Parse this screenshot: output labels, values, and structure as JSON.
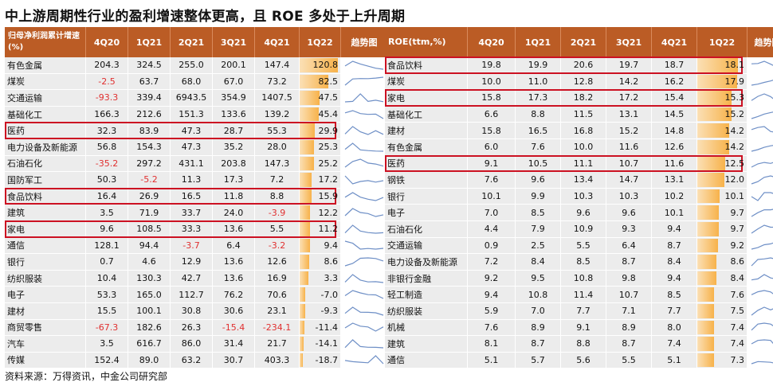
{
  "title": "中上游周期性行业的盈利增速整体更高，且 ROE 多处于上升周期",
  "source": "资料来源：万得资讯，中金公司研究部",
  "colors": {
    "header": "#bb5c25",
    "highlight": "#cc1122",
    "negative": "#e03030",
    "bar": "#f7b24a",
    "spark": "#6e8fc6"
  },
  "chart_data": [
    {
      "type": "table",
      "header_label": "归母净利润累计增速(%)",
      "columns": [
        "4Q20",
        "1Q21",
        "2Q21",
        "3Q21",
        "4Q21",
        "1Q22"
      ],
      "trend_label": "趋势图",
      "highlighted": [
        "医药",
        "食品饮料",
        "家电"
      ],
      "rows": [
        {
          "name": "有色金属",
          "values": [
            204.3,
            324.5,
            255.0,
            200.1,
            147.4,
            120.8
          ]
        },
        {
          "name": "煤炭",
          "values": [
            -2.5,
            63.7,
            68.0,
            67.0,
            73.2,
            82.5
          ]
        },
        {
          "name": "交通运输",
          "values": [
            -93.3,
            339.4,
            6943.5,
            354.9,
            1407.5,
            47.5
          ]
        },
        {
          "name": "基础化工",
          "values": [
            166.3,
            212.6,
            151.3,
            133.6,
            139.2,
            45.4
          ]
        },
        {
          "name": "医药",
          "values": [
            32.3,
            83.9,
            47.3,
            28.7,
            55.3,
            29.9
          ]
        },
        {
          "name": "电力设备及新能源",
          "values": [
            56.8,
            154.3,
            47.3,
            35.2,
            28.0,
            25.3
          ]
        },
        {
          "name": "石油石化",
          "values": [
            -35.2,
            297.2,
            431.1,
            203.8,
            147.3,
            25.2
          ]
        },
        {
          "name": "国防军工",
          "values": [
            50.3,
            -5.2,
            11.3,
            17.3,
            7.2,
            17.2
          ]
        },
        {
          "name": "食品饮料",
          "values": [
            16.4,
            26.9,
            16.5,
            11.8,
            8.8,
            15.9
          ]
        },
        {
          "name": "建筑",
          "values": [
            3.5,
            71.9,
            33.7,
            24.0,
            -3.9,
            12.2
          ]
        },
        {
          "name": "家电",
          "values": [
            9.6,
            108.5,
            33.3,
            13.6,
            5.5,
            11.2
          ]
        },
        {
          "name": "通信",
          "values": [
            128.1,
            94.4,
            -3.7,
            6.4,
            -3.2,
            9.4
          ]
        },
        {
          "name": "银行",
          "values": [
            0.7,
            4.6,
            12.9,
            13.6,
            12.6,
            8.6
          ]
        },
        {
          "name": "纺织服装",
          "values": [
            10.4,
            130.3,
            42.7,
            13.6,
            16.9,
            3.3
          ]
        },
        {
          "name": "电子",
          "values": [
            53.3,
            165.0,
            112.7,
            76.2,
            70.6,
            -7.0
          ]
        },
        {
          "name": "建材",
          "values": [
            15.5,
            100.1,
            30.8,
            30.6,
            23.1,
            -9.3
          ]
        },
        {
          "name": "商贸零售",
          "values": [
            -67.3,
            182.6,
            26.3,
            -15.4,
            -234.1,
            -11.4
          ]
        },
        {
          "name": "汽车",
          "values": [
            3.5,
            616.7,
            86.0,
            31.4,
            21.7,
            -14.1
          ]
        },
        {
          "name": "传媒",
          "values": [
            152.4,
            89.0,
            63.2,
            30.7,
            403.3,
            -18.7
          ]
        }
      ]
    },
    {
      "type": "table",
      "header_label": "ROE(ttm,%)",
      "columns": [
        "4Q20",
        "1Q21",
        "2Q21",
        "3Q21",
        "4Q21",
        "1Q22"
      ],
      "trend_label": "趋势图",
      "highlighted": [
        "食品饮料",
        "家电",
        "医药"
      ],
      "rows": [
        {
          "name": "食品饮料",
          "values": [
            19.8,
            19.9,
            20.6,
            19.7,
            18.7,
            18.1
          ]
        },
        {
          "name": "煤炭",
          "values": [
            10.0,
            11.0,
            12.8,
            14.2,
            16.2,
            17.9
          ]
        },
        {
          "name": "家电",
          "values": [
            15.8,
            17.3,
            18.2,
            17.2,
            15.4,
            15.3
          ]
        },
        {
          "name": "基础化工",
          "values": [
            6.6,
            8.8,
            11.5,
            13.1,
            14.5,
            15.2
          ]
        },
        {
          "name": "建材",
          "values": [
            15.8,
            16.5,
            16.8,
            15.2,
            14.8,
            14.2
          ]
        },
        {
          "name": "有色金属",
          "values": [
            6.0,
            7.6,
            10.0,
            11.6,
            12.6,
            14.2
          ]
        },
        {
          "name": "医药",
          "values": [
            9.1,
            10.5,
            11.1,
            10.7,
            11.6,
            12.5
          ]
        },
        {
          "name": "钢铁",
          "values": [
            7.6,
            9.6,
            13.4,
            14.7,
            13.1,
            12.0
          ]
        },
        {
          "name": "银行",
          "values": [
            10.1,
            9.9,
            10.3,
            10.3,
            10.2,
            10.1
          ]
        },
        {
          "name": "电子",
          "values": [
            7.0,
            8.5,
            9.6,
            9.6,
            10.1,
            9.7
          ]
        },
        {
          "name": "石油石化",
          "values": [
            4.4,
            7.9,
            10.9,
            9.3,
            9.4,
            9.7
          ]
        },
        {
          "name": "交通运输",
          "values": [
            0.9,
            2.5,
            5.5,
            6.4,
            8.7,
            9.2
          ]
        },
        {
          "name": "电力设备及新能源",
          "values": [
            7.2,
            8.4,
            8.5,
            8.7,
            8.4,
            8.6
          ]
        },
        {
          "name": "非银行金融",
          "values": [
            9.2,
            9.5,
            10.8,
            9.8,
            9.4,
            8.4
          ]
        },
        {
          "name": "轻工制造",
          "values": [
            9.4,
            10.8,
            11.4,
            10.7,
            8.5,
            7.6
          ]
        },
        {
          "name": "纺织服装",
          "values": [
            5.9,
            7.0,
            7.7,
            7.1,
            7.7,
            7.5
          ]
        },
        {
          "name": "机械",
          "values": [
            7.6,
            8.9,
            9.1,
            8.9,
            8.0,
            7.4
          ]
        },
        {
          "name": "建筑",
          "values": [
            8.1,
            8.7,
            8.8,
            8.7,
            7.4,
            7.4
          ]
        },
        {
          "name": "通信",
          "values": [
            5.1,
            5.7,
            5.6,
            5.5,
            5.1,
            7.3
          ]
        }
      ]
    }
  ]
}
